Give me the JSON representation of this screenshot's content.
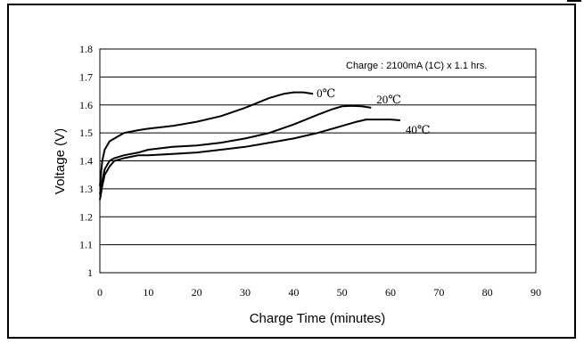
{
  "chart_data": {
    "type": "line",
    "title": "",
    "annotation": "Charge : 2100mA (1C) x 1.1 hrs.",
    "xlabel": "Charge Time (minutes)",
    "ylabel": "Voltage (V)",
    "xlim": [
      0,
      90
    ],
    "ylim": [
      1.0,
      1.8
    ],
    "x_ticks": [
      "0",
      "10",
      "20",
      "30",
      "40",
      "50",
      "60",
      "70",
      "80",
      "90"
    ],
    "y_ticks": [
      "1",
      "1.1",
      "1.2",
      "1.3",
      "1.4",
      "1.5",
      "1.6",
      "1.7",
      "1.8"
    ],
    "grid": "horizontal",
    "series": [
      {
        "name": "0℃",
        "x": [
          0,
          0.5,
          1,
          2,
          3,
          5,
          8,
          10,
          15,
          20,
          25,
          30,
          35,
          38,
          40,
          42,
          44
        ],
        "y": [
          1.31,
          1.4,
          1.44,
          1.47,
          1.48,
          1.5,
          1.51,
          1.515,
          1.525,
          1.54,
          1.56,
          1.59,
          1.625,
          1.64,
          1.645,
          1.645,
          1.64
        ]
      },
      {
        "name": "20℃",
        "x": [
          0,
          0.5,
          1,
          2,
          3,
          5,
          8,
          10,
          15,
          20,
          25,
          30,
          35,
          40,
          45,
          48,
          50,
          52,
          54,
          56
        ],
        "y": [
          1.28,
          1.33,
          1.37,
          1.4,
          1.41,
          1.42,
          1.43,
          1.44,
          1.45,
          1.455,
          1.465,
          1.48,
          1.5,
          1.53,
          1.565,
          1.585,
          1.595,
          1.597,
          1.595,
          1.59
        ]
      },
      {
        "name": "40℃",
        "x": [
          0,
          0.5,
          1,
          2,
          3,
          5,
          8,
          10,
          15,
          20,
          25,
          30,
          35,
          40,
          45,
          50,
          53,
          55,
          58,
          60,
          62
        ],
        "y": [
          1.26,
          1.31,
          1.35,
          1.38,
          1.4,
          1.41,
          1.42,
          1.42,
          1.425,
          1.43,
          1.44,
          1.45,
          1.465,
          1.48,
          1.5,
          1.525,
          1.54,
          1.548,
          1.548,
          1.548,
          1.545
        ]
      }
    ]
  }
}
